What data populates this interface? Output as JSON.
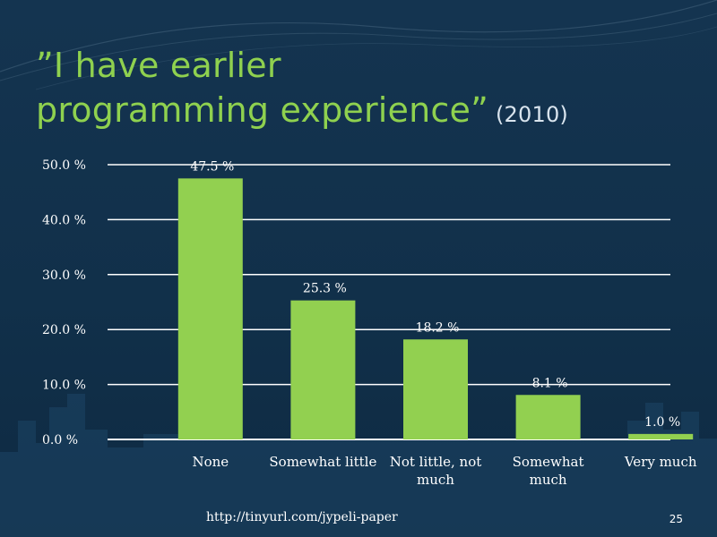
{
  "title": {
    "line1": "”I have earlier",
    "line2": "programming experience”",
    "year": "(2010)"
  },
  "footer": {
    "url": "http://tinyurl.com/jypeli-paper",
    "slide_number": "25"
  },
  "colors": {
    "bar": "#92d050",
    "title": "#8fd14f",
    "text": "#ffffff",
    "gridline": "#ffffff"
  },
  "chart_data": {
    "type": "bar",
    "title": "”I have earlier programming experience” (2010)",
    "categories": [
      "None",
      "Somewhat little",
      "Not little, not much",
      "Somewhat much",
      "Very much"
    ],
    "category_labels": [
      [
        "None"
      ],
      [
        "Somewhat little"
      ],
      [
        "Not little, not",
        "much"
      ],
      [
        "Somewhat",
        "much"
      ],
      [
        "Very much"
      ]
    ],
    "values": [
      47.5,
      25.3,
      18.2,
      8.1,
      1.0
    ],
    "data_labels": [
      "47.5 %",
      "25.3 %",
      "18.2 %",
      "8.1 %",
      "1.0 %"
    ],
    "y_ticks": [
      "0.0 %",
      "10.0 %",
      "20.0 %",
      "30.0 %",
      "40.0 %",
      "50.0 %"
    ],
    "y_tick_values": [
      0,
      10,
      20,
      30,
      40,
      50
    ],
    "ylim": [
      0,
      50
    ],
    "xlabel": "",
    "ylabel": "",
    "grid": true,
    "legend": "none"
  }
}
